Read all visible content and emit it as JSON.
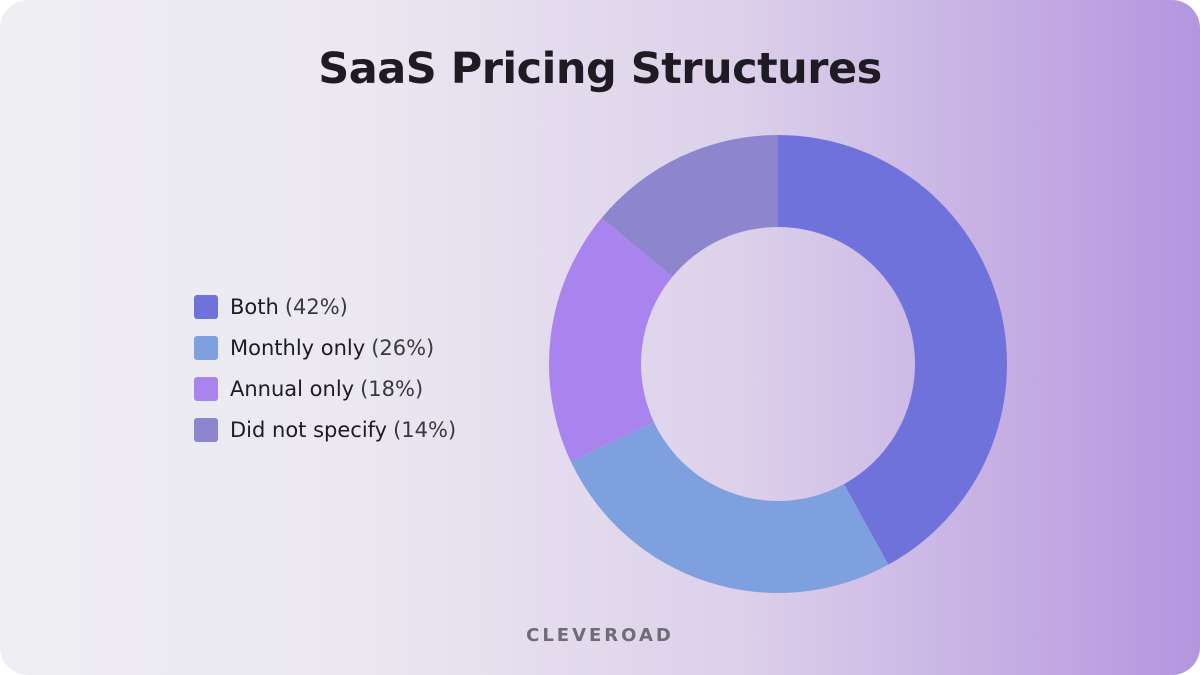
{
  "brand": "CLEVEROAD",
  "chart_data": {
    "type": "pie",
    "donut": true,
    "title": "SaaS Pricing Structures",
    "legend_position": "left",
    "grid": false,
    "series": [
      {
        "label": "Both",
        "pct_label": "(42%)",
        "value": 42,
        "color": "#7072dc"
      },
      {
        "label": "Monthly only",
        "pct_label": "(26%)",
        "value": 26,
        "color": "#7fa0df"
      },
      {
        "label": "Annual only",
        "pct_label": "(18%)",
        "value": 18,
        "color": "#a984ee"
      },
      {
        "label": "Did not specify",
        "pct_label": "(14%)",
        "value": 14,
        "color": "#8e85cf"
      }
    ]
  }
}
